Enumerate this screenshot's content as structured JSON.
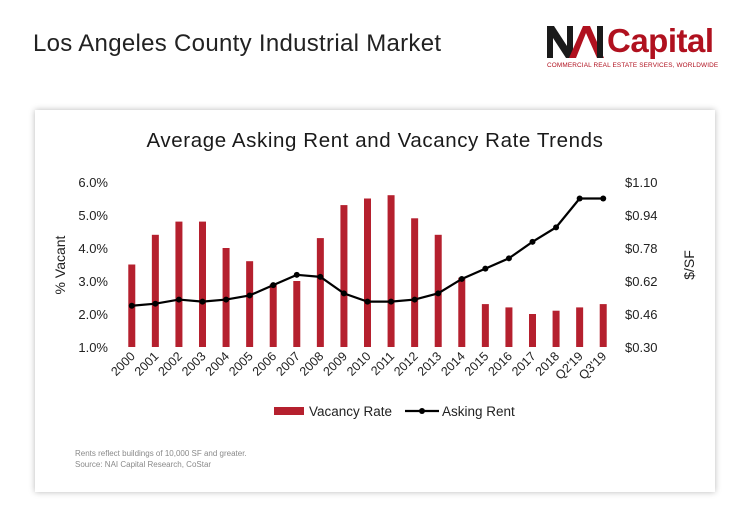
{
  "header": {
    "page_title": "Los Angeles County Industrial Market",
    "logo_word": "Capital",
    "logo_mark": "NAI",
    "logo_tagline": "COMMERCIAL REAL ESTATE SERVICES, WORLDWIDE",
    "brand_color": "#b0111f"
  },
  "chart_data": {
    "type": "bar+line",
    "title": "Average Asking Rent and Vacancy Rate Trends",
    "categories": [
      "2000",
      "2001",
      "2002",
      "2003",
      "2004",
      "2005",
      "2006",
      "2007",
      "2008",
      "2009",
      "2010",
      "2011",
      "2012",
      "2013",
      "2014",
      "2015",
      "2016",
      "2017",
      "2018",
      "Q2'19",
      "Q3'19"
    ],
    "series": [
      {
        "name": "Vacancy Rate",
        "type": "bar",
        "axis": "left",
        "color": "#b5202e",
        "values": [
          3.5,
          4.4,
          4.8,
          4.8,
          4.0,
          3.6,
          2.9,
          3.0,
          4.3,
          5.3,
          5.5,
          5.6,
          4.9,
          4.4,
          3.1,
          2.3,
          2.2,
          2.0,
          2.1,
          2.2,
          2.3
        ]
      },
      {
        "name": "Asking Rent",
        "type": "line",
        "axis": "right",
        "color": "#000000",
        "values": [
          0.5,
          0.51,
          0.53,
          0.52,
          0.53,
          0.55,
          0.6,
          0.65,
          0.64,
          0.56,
          0.52,
          0.52,
          0.53,
          0.56,
          0.63,
          0.68,
          0.73,
          0.81,
          0.88,
          1.02,
          1.02
        ]
      }
    ],
    "y_left": {
      "label": "% Vacant",
      "ticks": [
        "1.0%",
        "2.0%",
        "3.0%",
        "4.0%",
        "5.0%",
        "6.0%"
      ],
      "range": [
        1.0,
        6.0
      ]
    },
    "y_right": {
      "label": "$/SF",
      "ticks": [
        "$0.30",
        "$0.46",
        "$0.62",
        "$0.78",
        "$0.94",
        "$1.10"
      ],
      "range": [
        0.3,
        1.1
      ]
    },
    "legend_position": "bottom",
    "grid": false
  },
  "footnotes": [
    "Rents reflect buildings of 10,000 SF and greater.",
    "Source: NAI Capital Research, CoStar"
  ]
}
